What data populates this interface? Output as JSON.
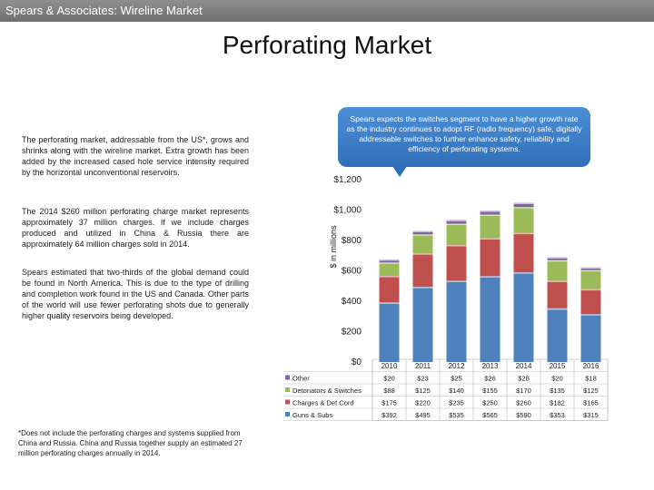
{
  "header": {
    "title": "Spears & Associates: Wireline Market"
  },
  "page_title": "Perforating Market",
  "paragraphs": [
    "The perforating market, addressable from the US*, grows and shrinks along with the wireline market. Extra growth has been added by the increased cased hole service intensity required by the horizontal unconventional reservoirs.",
    "The 2014 $260 million perforating charge market represents approximately 37 million charges. If we include charges produced and utilized in China & Russia there are approximately 64 million charges sold in 2014.",
    "Spears estimated that two-thirds of the global demand could be found in North America. This is due to the type of drilling and completion work found in the US and Canada. Other parts of the world will use fewer perforating shots due to generally higher quality reservoirs being developed."
  ],
  "callout": "Spears expects the switches segment to have a higher growth rate as the industry continues to adopt RF (radio frequency) safe, digitally addressable switches to further enhance safety, reliability and efficiency of perforating systems.",
  "footnote": "*Does not include the perforating charges and systems supplied from China and Russia. China and Russia together supply an estimated 27 million perforating charges annually in 2014.",
  "chart_data": {
    "type": "bar",
    "stacked": true,
    "ylabel": "$ in millions",
    "ylim": [
      0,
      1200
    ],
    "yticks": [
      0,
      200,
      400,
      600,
      800,
      1000,
      1200
    ],
    "ytick_labels": [
      "$0",
      "$200",
      "$400",
      "$600",
      "$800",
      "$1,000",
      "$1,200"
    ],
    "categories": [
      "2010",
      "2011",
      "2012",
      "2013",
      "2014",
      "2015",
      "2016"
    ],
    "series": [
      {
        "name": "Guns & Subs",
        "color": "#4f81bd",
        "values": [
          392,
          495,
          535,
          565,
          590,
          353,
          315
        ],
        "labels": [
          "$392",
          "$495",
          "$535",
          "$565",
          "$590",
          "$353",
          "$315"
        ]
      },
      {
        "name": "Charges & Det Cord",
        "color": "#c0504d",
        "values": [
          175,
          220,
          235,
          250,
          260,
          182,
          165
        ],
        "labels": [
          "$175",
          "$220",
          "$235",
          "$250",
          "$260",
          "$182",
          "$165"
        ]
      },
      {
        "name": "Detonators & Switches",
        "color": "#9bbb59",
        "values": [
          88,
          125,
          140,
          155,
          170,
          135,
          125
        ],
        "labels": [
          "$88",
          "$125",
          "$140",
          "$155",
          "$170",
          "$135",
          "$125"
        ]
      },
      {
        "name": "Other",
        "color": "#8064a2",
        "values": [
          20,
          23,
          25,
          26,
          28,
          20,
          18
        ],
        "labels": [
          "$20",
          "$23",
          "$25",
          "$26",
          "$28",
          "$20",
          "$18"
        ]
      }
    ],
    "legend": "table-left"
  }
}
